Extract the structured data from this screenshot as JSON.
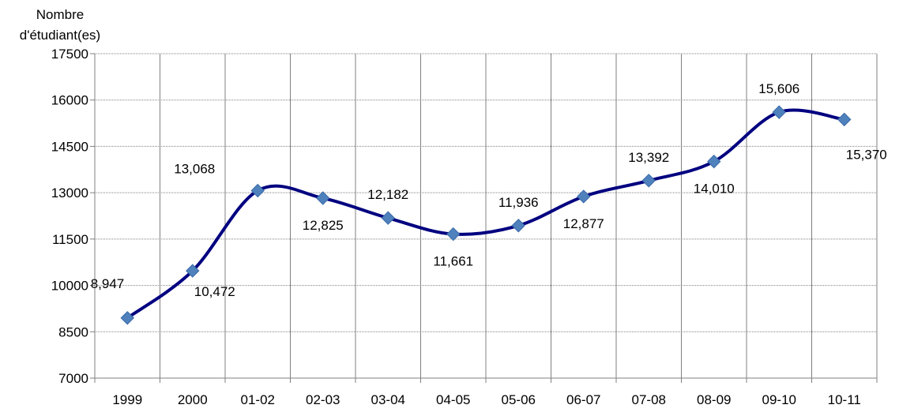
{
  "chart_data": {
    "type": "line",
    "ylabel_lines": [
      "Nombre",
      "d'étudiant(es)"
    ],
    "categories": [
      "1999",
      "2000",
      "01-02",
      "02-03",
      "03-04",
      "04-05",
      "05-06",
      "06-07",
      "07-08",
      "08-09",
      "09-10",
      "10-11"
    ],
    "values": [
      8947,
      10472,
      13068,
      12825,
      12182,
      11661,
      11936,
      12877,
      13392,
      14010,
      15606,
      15370
    ],
    "data_labels": [
      "8,947",
      "10,472",
      "13,068",
      "12,825",
      "12,182",
      "11,661",
      "11,936",
      "12,877",
      "13,392",
      "14,010",
      "15,606",
      "15,370"
    ],
    "yticks": [
      7000,
      8500,
      10000,
      11500,
      13000,
      14500,
      16000,
      17500
    ],
    "ylim": [
      7000,
      17500
    ],
    "grid": true,
    "line_color": "#000080",
    "marker_color": "#4F81BD",
    "grid_color": "#808080"
  }
}
